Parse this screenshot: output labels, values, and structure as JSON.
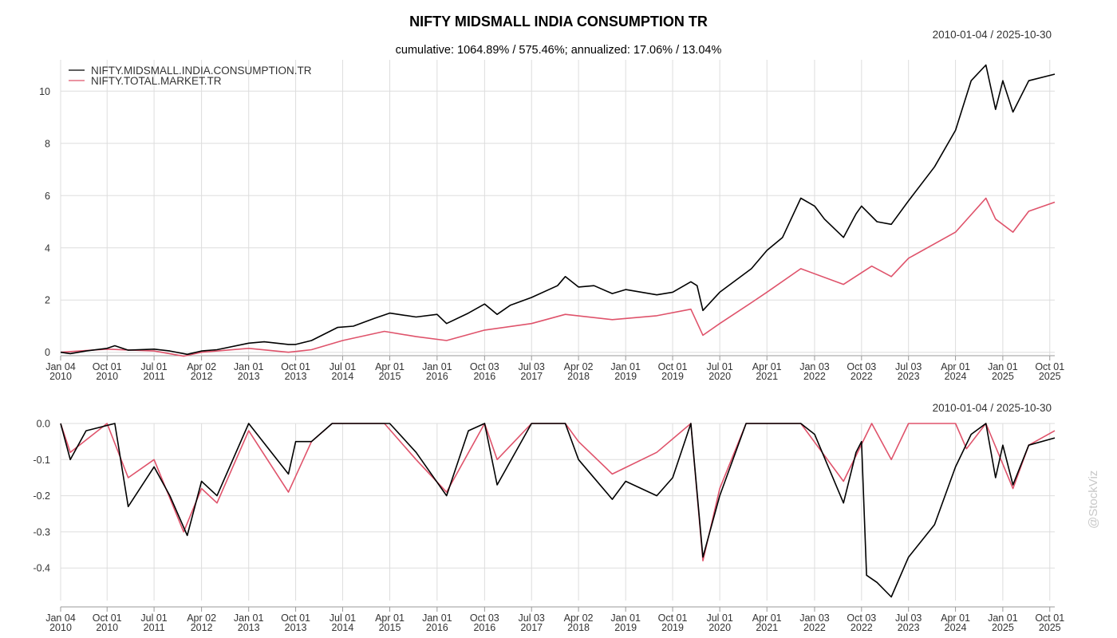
{
  "header": {
    "title": "NIFTY MIDSMALL INDIA CONSUMPTION TR",
    "subtitle": "cumulative: 1064.89% / 575.46%; annualized: 17.06% / 13.04%",
    "range_top": "2010-01-04 / 2025-10-30",
    "range_bottom": "2010-01-04 / 2025-10-30"
  },
  "watermark": "@StockViz",
  "colors": {
    "series1": "#000000",
    "series2": "#df536b",
    "grid": "#dddddd",
    "axis": "#999999"
  },
  "x_ticks": [
    {
      "d": "2010-01-04",
      "l1": "Jan 04",
      "l2": "2010"
    },
    {
      "d": "2010-10-01",
      "l1": "Oct 01",
      "l2": "2010"
    },
    {
      "d": "2011-07-01",
      "l1": "Jul 01",
      "l2": "2011"
    },
    {
      "d": "2012-04-02",
      "l1": "Apr 02",
      "l2": "2012"
    },
    {
      "d": "2013-01-01",
      "l1": "Jan 01",
      "l2": "2013"
    },
    {
      "d": "2013-10-01",
      "l1": "Oct 01",
      "l2": "2013"
    },
    {
      "d": "2014-07-01",
      "l1": "Jul 01",
      "l2": "2014"
    },
    {
      "d": "2015-04-01",
      "l1": "Apr 01",
      "l2": "2015"
    },
    {
      "d": "2016-01-01",
      "l1": "Jan 01",
      "l2": "2016"
    },
    {
      "d": "2016-10-03",
      "l1": "Oct 03",
      "l2": "2016"
    },
    {
      "d": "2017-07-03",
      "l1": "Jul 03",
      "l2": "2017"
    },
    {
      "d": "2018-04-02",
      "l1": "Apr 02",
      "l2": "2018"
    },
    {
      "d": "2019-01-01",
      "l1": "Jan 01",
      "l2": "2019"
    },
    {
      "d": "2019-10-01",
      "l1": "Oct 01",
      "l2": "2019"
    },
    {
      "d": "2020-07-01",
      "l1": "Jul 01",
      "l2": "2020"
    },
    {
      "d": "2021-04-01",
      "l1": "Apr 01",
      "l2": "2021"
    },
    {
      "d": "2022-01-03",
      "l1": "Jan 03",
      "l2": "2022"
    },
    {
      "d": "2022-10-03",
      "l1": "Oct 03",
      "l2": "2022"
    },
    {
      "d": "2023-07-03",
      "l1": "Jul 03",
      "l2": "2023"
    },
    {
      "d": "2024-04-01",
      "l1": "Apr 01",
      "l2": "2024"
    },
    {
      "d": "2025-01-01",
      "l1": "Jan 01",
      "l2": "2025"
    },
    {
      "d": "2025-10-01",
      "l1": "Oct 01",
      "l2": "2025"
    }
  ],
  "chart_data": [
    {
      "type": "line",
      "panel": "cumulative",
      "x_start": "2010-01-04",
      "x_end": "2025-10-30",
      "ylim": [
        -0.1,
        11.2
      ],
      "y_ticks": [
        0,
        2,
        4,
        6,
        8,
        10
      ],
      "y_tick_labels": [
        "0",
        "2",
        "4",
        "6",
        "8",
        "10"
      ],
      "legend_position": "top-left",
      "grid": true,
      "series": [
        {
          "name": "NIFTY.MIDSMALL.INDIA.CONSUMPTION.TR",
          "color": "#000000",
          "points": [
            [
              "2010-01-04",
              0.0
            ],
            [
              "2010-03-01",
              -0.05
            ],
            [
              "2010-06-01",
              0.05
            ],
            [
              "2010-10-01",
              0.15
            ],
            [
              "2010-11-15",
              0.25
            ],
            [
              "2011-02-01",
              0.08
            ],
            [
              "2011-07-01",
              0.12
            ],
            [
              "2011-10-01",
              0.05
            ],
            [
              "2012-01-10",
              -0.08
            ],
            [
              "2012-04-02",
              0.05
            ],
            [
              "2012-07-01",
              0.1
            ],
            [
              "2013-01-01",
              0.35
            ],
            [
              "2013-04-01",
              0.4
            ],
            [
              "2013-08-20",
              0.3
            ],
            [
              "2013-10-01",
              0.3
            ],
            [
              "2014-01-01",
              0.45
            ],
            [
              "2014-06-01",
              0.95
            ],
            [
              "2014-09-01",
              1.0
            ],
            [
              "2015-01-01",
              1.3
            ],
            [
              "2015-04-01",
              1.5
            ],
            [
              "2015-09-01",
              1.35
            ],
            [
              "2016-01-01",
              1.45
            ],
            [
              "2016-02-25",
              1.1
            ],
            [
              "2016-07-01",
              1.5
            ],
            [
              "2016-10-03",
              1.85
            ],
            [
              "2016-12-15",
              1.45
            ],
            [
              "2017-03-01",
              1.8
            ],
            [
              "2017-07-03",
              2.1
            ],
            [
              "2017-12-01",
              2.55
            ],
            [
              "2018-01-15",
              2.9
            ],
            [
              "2018-04-02",
              2.5
            ],
            [
              "2018-07-01",
              2.55
            ],
            [
              "2018-10-15",
              2.25
            ],
            [
              "2019-01-01",
              2.4
            ],
            [
              "2019-07-01",
              2.2
            ],
            [
              "2019-10-01",
              2.3
            ],
            [
              "2020-01-15",
              2.7
            ],
            [
              "2020-02-20",
              2.55
            ],
            [
              "2020-03-25",
              1.6
            ],
            [
              "2020-07-01",
              2.3
            ],
            [
              "2021-01-01",
              3.2
            ],
            [
              "2021-04-01",
              3.9
            ],
            [
              "2021-07-01",
              4.4
            ],
            [
              "2021-10-15",
              5.9
            ],
            [
              "2022-01-03",
              5.6
            ],
            [
              "2022-03-01",
              5.1
            ],
            [
              "2022-06-20",
              4.4
            ],
            [
              "2022-09-01",
              5.3
            ],
            [
              "2022-10-03",
              5.6
            ],
            [
              "2023-01-01",
              5.0
            ],
            [
              "2023-03-25",
              4.9
            ],
            [
              "2023-07-03",
              5.8
            ],
            [
              "2023-12-01",
              7.1
            ],
            [
              "2024-04-01",
              8.5
            ],
            [
              "2024-07-01",
              10.4
            ],
            [
              "2024-09-25",
              11.0
            ],
            [
              "2024-11-20",
              9.3
            ],
            [
              "2025-01-01",
              10.4
            ],
            [
              "2025-03-01",
              9.2
            ],
            [
              "2025-06-01",
              10.4
            ],
            [
              "2025-10-30",
              10.65
            ]
          ]
        },
        {
          "name": "NIFTY.TOTAL.MARKET.TR",
          "color": "#df536b",
          "points": [
            [
              "2010-01-04",
              0.0
            ],
            [
              "2010-10-01",
              0.12
            ],
            [
              "2011-07-01",
              0.05
            ],
            [
              "2011-12-20",
              -0.15
            ],
            [
              "2012-04-02",
              0.0
            ],
            [
              "2013-01-01",
              0.15
            ],
            [
              "2013-08-20",
              0.0
            ],
            [
              "2014-01-01",
              0.1
            ],
            [
              "2014-07-01",
              0.45
            ],
            [
              "2015-03-01",
              0.8
            ],
            [
              "2015-09-01",
              0.6
            ],
            [
              "2016-02-25",
              0.45
            ],
            [
              "2016-10-03",
              0.85
            ],
            [
              "2017-07-03",
              1.1
            ],
            [
              "2018-01-15",
              1.45
            ],
            [
              "2018-10-15",
              1.25
            ],
            [
              "2019-07-01",
              1.4
            ],
            [
              "2020-01-15",
              1.65
            ],
            [
              "2020-03-25",
              0.65
            ],
            [
              "2020-07-01",
              1.1
            ],
            [
              "2021-01-01",
              1.9
            ],
            [
              "2021-04-01",
              2.3
            ],
            [
              "2021-10-15",
              3.2
            ],
            [
              "2022-06-20",
              2.6
            ],
            [
              "2022-12-01",
              3.3
            ],
            [
              "2023-03-25",
              2.9
            ],
            [
              "2023-07-03",
              3.6
            ],
            [
              "2024-04-01",
              4.6
            ],
            [
              "2024-09-25",
              5.9
            ],
            [
              "2024-11-20",
              5.1
            ],
            [
              "2025-03-01",
              4.6
            ],
            [
              "2025-06-01",
              5.4
            ],
            [
              "2025-10-30",
              5.75
            ]
          ]
        }
      ]
    },
    {
      "type": "line",
      "panel": "drawdown",
      "x_start": "2010-01-04",
      "x_end": "2025-10-30",
      "ylim": [
        -0.49,
        0.0
      ],
      "y_ticks": [
        0.0,
        -0.1,
        -0.2,
        -0.3,
        -0.4
      ],
      "y_tick_labels": [
        "0.0",
        "-0.1",
        "-0.2",
        "-0.3",
        "-0.4"
      ],
      "grid": true,
      "series": [
        {
          "color": "#000000",
          "points": [
            [
              "2010-01-04",
              0.0
            ],
            [
              "2010-03-01",
              -0.1
            ],
            [
              "2010-06-01",
              -0.02
            ],
            [
              "2010-11-15",
              0.0
            ],
            [
              "2011-02-01",
              -0.23
            ],
            [
              "2011-07-01",
              -0.12
            ],
            [
              "2011-10-01",
              -0.2
            ],
            [
              "2012-01-10",
              -0.31
            ],
            [
              "2012-04-02",
              -0.16
            ],
            [
              "2012-07-01",
              -0.2
            ],
            [
              "2013-01-01",
              0.0
            ],
            [
              "2013-08-20",
              -0.14
            ],
            [
              "2013-10-01",
              -0.05
            ],
            [
              "2014-01-01",
              -0.05
            ],
            [
              "2014-05-01",
              0.0
            ],
            [
              "2015-04-01",
              0.0
            ],
            [
              "2015-09-01",
              -0.08
            ],
            [
              "2016-02-25",
              -0.2
            ],
            [
              "2016-07-01",
              -0.02
            ],
            [
              "2016-10-03",
              0.0
            ],
            [
              "2016-12-15",
              -0.17
            ],
            [
              "2017-07-03",
              0.0
            ],
            [
              "2018-01-15",
              0.0
            ],
            [
              "2018-04-02",
              -0.1
            ],
            [
              "2018-10-15",
              -0.21
            ],
            [
              "2019-01-01",
              -0.16
            ],
            [
              "2019-07-01",
              -0.2
            ],
            [
              "2019-10-01",
              -0.15
            ],
            [
              "2020-01-15",
              0.0
            ],
            [
              "2020-03-25",
              -0.37
            ],
            [
              "2020-07-01",
              -0.2
            ],
            [
              "2020-12-01",
              0.0
            ],
            [
              "2021-10-15",
              0.0
            ],
            [
              "2022-01-03",
              -0.03
            ],
            [
              "2022-06-20",
              -0.22
            ],
            [
              "2022-09-01",
              -0.08
            ],
            [
              "2022-10-03",
              -0.05
            ],
            [
              "2022-11-01",
              -0.42
            ],
            [
              "2023-01-01",
              -0.44
            ],
            [
              "2023-03-25",
              -0.48
            ],
            [
              "2023-07-03",
              -0.37
            ],
            [
              "2023-12-01",
              -0.28
            ],
            [
              "2024-04-01",
              -0.12
            ],
            [
              "2024-07-01",
              -0.03
            ],
            [
              "2024-09-25",
              0.0
            ],
            [
              "2024-11-20",
              -0.15
            ],
            [
              "2025-01-01",
              -0.06
            ],
            [
              "2025-03-01",
              -0.17
            ],
            [
              "2025-06-01",
              -0.06
            ],
            [
              "2025-10-30",
              -0.04
            ]
          ]
        },
        {
          "color": "#df536b",
          "points": [
            [
              "2010-01-04",
              0.0
            ],
            [
              "2010-03-01",
              -0.08
            ],
            [
              "2010-10-01",
              0.0
            ],
            [
              "2011-02-01",
              -0.15
            ],
            [
              "2011-07-01",
              -0.1
            ],
            [
              "2011-12-20",
              -0.3
            ],
            [
              "2012-04-02",
              -0.18
            ],
            [
              "2012-07-01",
              -0.22
            ],
            [
              "2013-01-01",
              -0.02
            ],
            [
              "2013-08-20",
              -0.19
            ],
            [
              "2014-01-01",
              -0.05
            ],
            [
              "2014-05-01",
              0.0
            ],
            [
              "2015-03-01",
              0.0
            ],
            [
              "2015-09-01",
              -0.1
            ],
            [
              "2016-02-25",
              -0.19
            ],
            [
              "2016-10-03",
              0.0
            ],
            [
              "2016-12-15",
              -0.1
            ],
            [
              "2017-07-03",
              0.0
            ],
            [
              "2018-01-15",
              0.0
            ],
            [
              "2018-04-02",
              -0.05
            ],
            [
              "2018-10-15",
              -0.14
            ],
            [
              "2019-07-01",
              -0.08
            ],
            [
              "2020-01-15",
              0.0
            ],
            [
              "2020-03-25",
              -0.38
            ],
            [
              "2020-07-01",
              -0.18
            ],
            [
              "2020-12-01",
              0.0
            ],
            [
              "2021-10-15",
              0.0
            ],
            [
              "2022-06-20",
              -0.16
            ],
            [
              "2022-12-01",
              0.0
            ],
            [
              "2023-03-25",
              -0.1
            ],
            [
              "2023-07-03",
              0.0
            ],
            [
              "2024-04-01",
              0.0
            ],
            [
              "2024-06-04",
              -0.07
            ],
            [
              "2024-09-25",
              0.0
            ],
            [
              "2025-03-01",
              -0.18
            ],
            [
              "2025-06-01",
              -0.06
            ],
            [
              "2025-10-30",
              -0.02
            ]
          ]
        }
      ]
    }
  ]
}
